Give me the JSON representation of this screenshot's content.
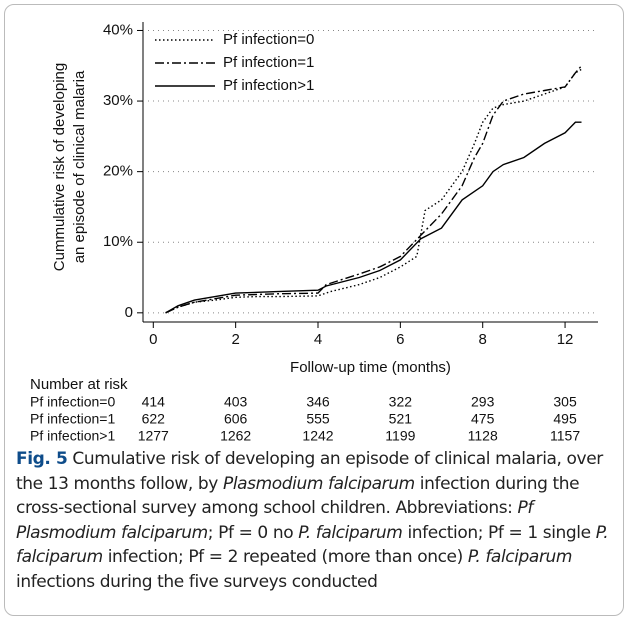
{
  "chart_data": {
    "type": "line",
    "ylabel": [
      "Cummulative risk of developing",
      "an episode of clinical malaria"
    ],
    "xlabel": "Follow-up time (months)",
    "xlim": [
      -0.25,
      13.6
    ],
    "xticks": [
      0,
      2,
      4,
      6,
      8,
      12
    ],
    "ylim": [
      -1.3,
      41.2
    ],
    "yticks": [
      0,
      {
        "value": 10,
        "label": "10%"
      },
      {
        "value": 20,
        "label": "20%"
      },
      {
        "value": 30,
        "label": "30%"
      },
      {
        "value": 40,
        "label": "40%"
      }
    ],
    "grid": true,
    "legend": "upper left",
    "series": [
      {
        "name": "Pf infection=0",
        "color": "#000000",
        "dash": "dotted",
        "x": [
          0.3,
          0.6,
          1,
          1.5,
          2,
          2.5,
          3,
          4,
          4.3,
          5,
          5.5,
          6,
          6.4,
          6.6,
          7,
          7.5,
          7.8,
          8,
          8.5,
          9,
          10,
          11,
          12,
          12.5,
          12.8
        ],
        "values": [
          0,
          0.8,
          1.5,
          1.8,
          2.2,
          2.3,
          2.3,
          2.4,
          3,
          4,
          5,
          6.5,
          8,
          14.5,
          16,
          20,
          24,
          27,
          29,
          29.5,
          30,
          31,
          32,
          34,
          34.5
        ]
      },
      {
        "name": "Pf infection=1",
        "color": "#000000",
        "dash": "dashdot",
        "x": [
          0.3,
          0.6,
          1,
          1.5,
          2,
          3,
          4,
          4.2,
          5,
          5.5,
          6,
          6.5,
          7,
          7.5,
          7.8,
          8,
          8.5,
          9,
          10,
          11,
          12,
          12.5,
          12.8
        ],
        "values": [
          0,
          0.8,
          1.5,
          2,
          2.5,
          2.7,
          2.8,
          4,
          5.5,
          6.5,
          8,
          11,
          14,
          18,
          22,
          24,
          28,
          30,
          31,
          31.5,
          32,
          34,
          35
        ]
      },
      {
        "name": "Pf infection>1",
        "color": "#000000",
        "dash": "solid",
        "x": [
          0.3,
          0.6,
          1,
          1.5,
          2,
          3,
          4,
          4.2,
          5,
          5.5,
          6,
          6.5,
          7,
          7.5,
          8,
          8.5,
          9,
          10,
          11,
          12,
          12.5,
          12.8
        ],
        "values": [
          0,
          1,
          1.8,
          2.3,
          2.8,
          3,
          3.2,
          3.8,
          5,
          6,
          7.5,
          10.5,
          12,
          16,
          18,
          20,
          21,
          22,
          24,
          25.5,
          27,
          27
        ]
      }
    ],
    "risk_table": {
      "title": "Number at risk",
      "rows": [
        {
          "label": "Pf infection=0",
          "values": [
            "414",
            "403",
            "346",
            "322",
            "293",
            "305"
          ]
        },
        {
          "label": "Pf infection=1",
          "values": [
            "622",
            "606",
            "555",
            "521",
            "475",
            "495"
          ]
        },
        {
          "label": "Pf infection>1",
          "values": [
            "1277",
            "1262",
            "1242",
            "1199",
            "1128",
            "1157"
          ]
        }
      ]
    }
  },
  "caption": {
    "label": "Fig. 5",
    "segments": [
      {
        "text": " Cumulative risk of developing an episode of clinical malaria, over the 13 months follow, by ",
        "italic": false
      },
      {
        "text": "Plasmodium falciparum",
        "italic": true
      },
      {
        "text": " infection during the cross-sectional survey among school children. Abbreviations: ",
        "italic": false
      },
      {
        "text": "Pf Plasmodium falciparum",
        "italic": true
      },
      {
        "text": "; Pf = 0 no ",
        "italic": false
      },
      {
        "text": "P. falciparum",
        "italic": true
      },
      {
        "text": " infection; Pf = 1 single ",
        "italic": false
      },
      {
        "text": "P. falciparum",
        "italic": true
      },
      {
        "text": " infection; Pf = 2 repeated (more than once) ",
        "italic": false
      },
      {
        "text": "P. falciparum",
        "italic": true
      },
      {
        "text": " infections during the five surveys conducted",
        "italic": false
      }
    ]
  }
}
